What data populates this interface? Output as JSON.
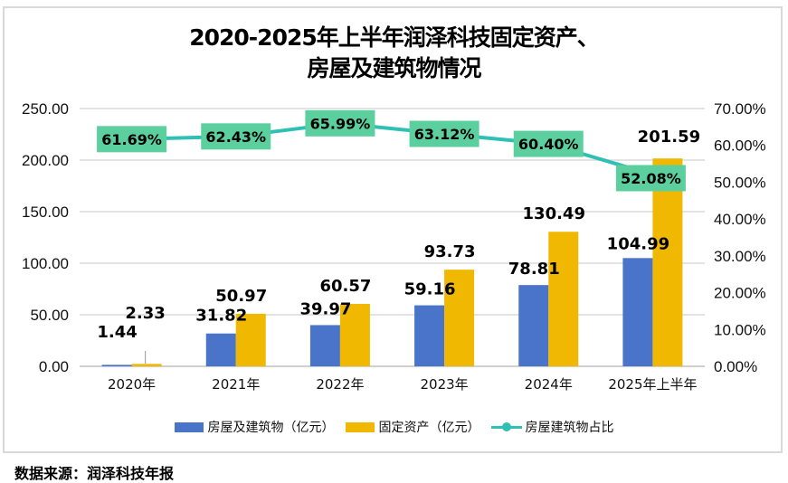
{
  "colors": {
    "buildings": "#4a74c9",
    "fixed_assets": "#f0b800",
    "ratio_line": "#2fc0b5",
    "ratio_label_bg": "#5ccf9f",
    "grid": "#e3e3e3"
  },
  "chart_data": {
    "type": "bar+line",
    "title_line1": "2020-2025年上半年润泽科技固定资产、",
    "title_line2": "房屋及建筑物情况",
    "categories": [
      "2020年",
      "2021年",
      "2022年",
      "2023年",
      "2024年",
      "2025年上半年"
    ],
    "series": [
      {
        "name": "房屋及建筑物（亿元）",
        "type": "bar",
        "axis": "left",
        "values": [
          1.44,
          31.82,
          39.97,
          59.16,
          78.81,
          104.99
        ],
        "labels": [
          "1.44",
          "31.82",
          "39.97",
          "59.16",
          "78.81",
          "104.99"
        ]
      },
      {
        "name": "固定资产（亿元）",
        "type": "bar",
        "axis": "left",
        "values": [
          2.33,
          50.97,
          60.57,
          93.73,
          130.49,
          201.59
        ],
        "labels": [
          "2.33",
          "50.97",
          "60.57",
          "93.73",
          "130.49",
          "201.59"
        ]
      },
      {
        "name": "房屋建筑物占比",
        "type": "line",
        "axis": "right",
        "values": [
          61.69,
          62.43,
          65.99,
          63.12,
          60.4,
          52.08
        ],
        "labels": [
          "61.69%",
          "62.43%",
          "65.99%",
          "63.12%",
          "60.40%",
          "52.08%"
        ]
      }
    ],
    "y_left": {
      "range": [
        0,
        250
      ],
      "ticks": [
        "0.00",
        "50.00",
        "100.00",
        "150.00",
        "200.00",
        "250.00"
      ],
      "tick_values": [
        0,
        50,
        100,
        150,
        200,
        250
      ]
    },
    "y_right": {
      "range": [
        0,
        70
      ],
      "ticks": [
        "0.00%",
        "10.00%",
        "20.00%",
        "30.00%",
        "40.00%",
        "50.00%",
        "60.00%",
        "70.00%"
      ],
      "tick_values": [
        0,
        10,
        20,
        30,
        40,
        50,
        60,
        70
      ]
    },
    "grid": true,
    "legend_position": "bottom"
  },
  "source": "数据来源：润泽科技年报"
}
